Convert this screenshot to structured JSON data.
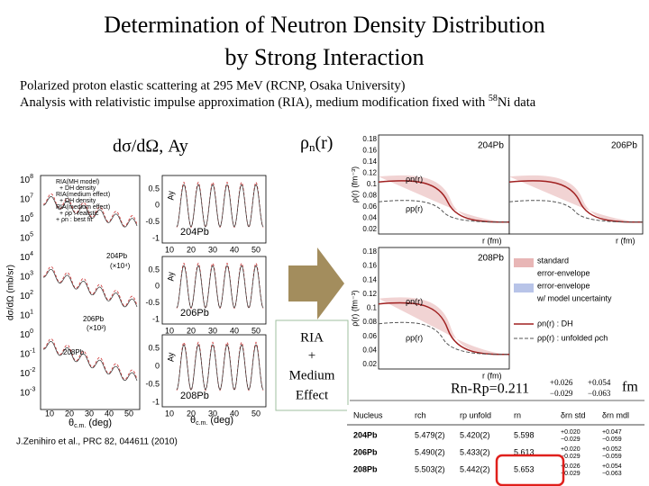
{
  "title": [
    "Determination of Neutron Density Distribution",
    "by Strong Interaction"
  ],
  "subtitle": [
    "Polarized proton elastic scattering at 295 MeV (RCNP, Osaka University)",
    {
      "before": "Analysis with relativistic impulse approximation (RIA), medium modification fixed with ",
      "sup": "58",
      "after": "Ni data"
    }
  ],
  "labels": {
    "cross_section": "dσ/dΩ, Ay",
    "density": {
      "main": "ρ",
      "sub": "n",
      "after": "(r)"
    }
  },
  "left_figure": {
    "y_axis_title": "dσ/dΩ (mb/sr)",
    "ay_axis_title": "Ay",
    "x_axis_title": {
      "main": "θ",
      "sub": "c.m.",
      "after": " (deg)"
    },
    "power_base": "10",
    "exponents": [
      "8",
      "7",
      "6",
      "5",
      "4",
      "3",
      "2",
      "1",
      "0",
      "-1",
      "-2",
      "-3"
    ],
    "ay_ticks": [
      "0.5",
      "0",
      "-0.5",
      "-1"
    ],
    "x_ticks": [
      "10",
      "20",
      "30",
      "40",
      "50"
    ],
    "legend": [
      "RIA(MH model)",
      "+ DH density",
      "RIA(medium effect)",
      "+ DH density",
      "RIA(medium effect)",
      "+ ρp : realistic",
      "+ ρn : best fit"
    ],
    "nuclei": [
      "204Pb",
      "206Pb",
      "208Pb"
    ],
    "scales": [
      "(×10⁴)",
      "(×10²)"
    ]
  },
  "arrow_box": [
    "RIA",
    "+",
    "Medium",
    "Effect"
  ],
  "right_figure": {
    "y_axis_title": "ρ(r) (fm⁻³)",
    "x_axis_title": "r (fm)",
    "y_ticks": [
      "0.18",
      "0.16",
      "0.14",
      "0.12",
      "0.1",
      "0.08",
      "0.06",
      "0.04",
      "0.02"
    ],
    "nuclei": [
      "204Pb",
      "206Pb",
      "208Pb"
    ],
    "rho_n": "ρn(r)",
    "rho_p": "ρp(r)",
    "legend": [
      "standard",
      "error-envelope",
      "error-envelope",
      "w/ model uncertainty",
      "ρn(r) : DH",
      "ρp(r) : unfolded ρch"
    ]
  },
  "result": {
    "text": "Rn-Rp=0.211",
    "err1": [
      "+0.026",
      "−0.029"
    ],
    "err2": [
      "+0.054",
      "−0.063"
    ],
    "unit": "fm"
  },
  "table": {
    "header": [
      "Nucleus",
      "rch",
      "rp unfold",
      "rn",
      "δrn std",
      "δrn mdl"
    ],
    "rows": [
      [
        "204Pb",
        "5.479(2)",
        "5.420(2)",
        "5.598",
        [
          "+0.020",
          "−0.029"
        ],
        [
          "+0.047",
          "−0.059"
        ]
      ],
      [
        "206Pb",
        "5.490(2)",
        "5.433(2)",
        "5.613",
        [
          "+0.020",
          "−0.029"
        ],
        [
          "+0.052",
          "−0.059"
        ]
      ],
      [
        "208Pb",
        "5.503(2)",
        "5.442(2)",
        "5.653",
        [
          "+0.026",
          "−0.029"
        ],
        [
          "+0.054",
          "−0.063"
        ]
      ]
    ]
  },
  "citation": "J.Zenihiro et al., PRC 82, 044611 (2010)"
}
